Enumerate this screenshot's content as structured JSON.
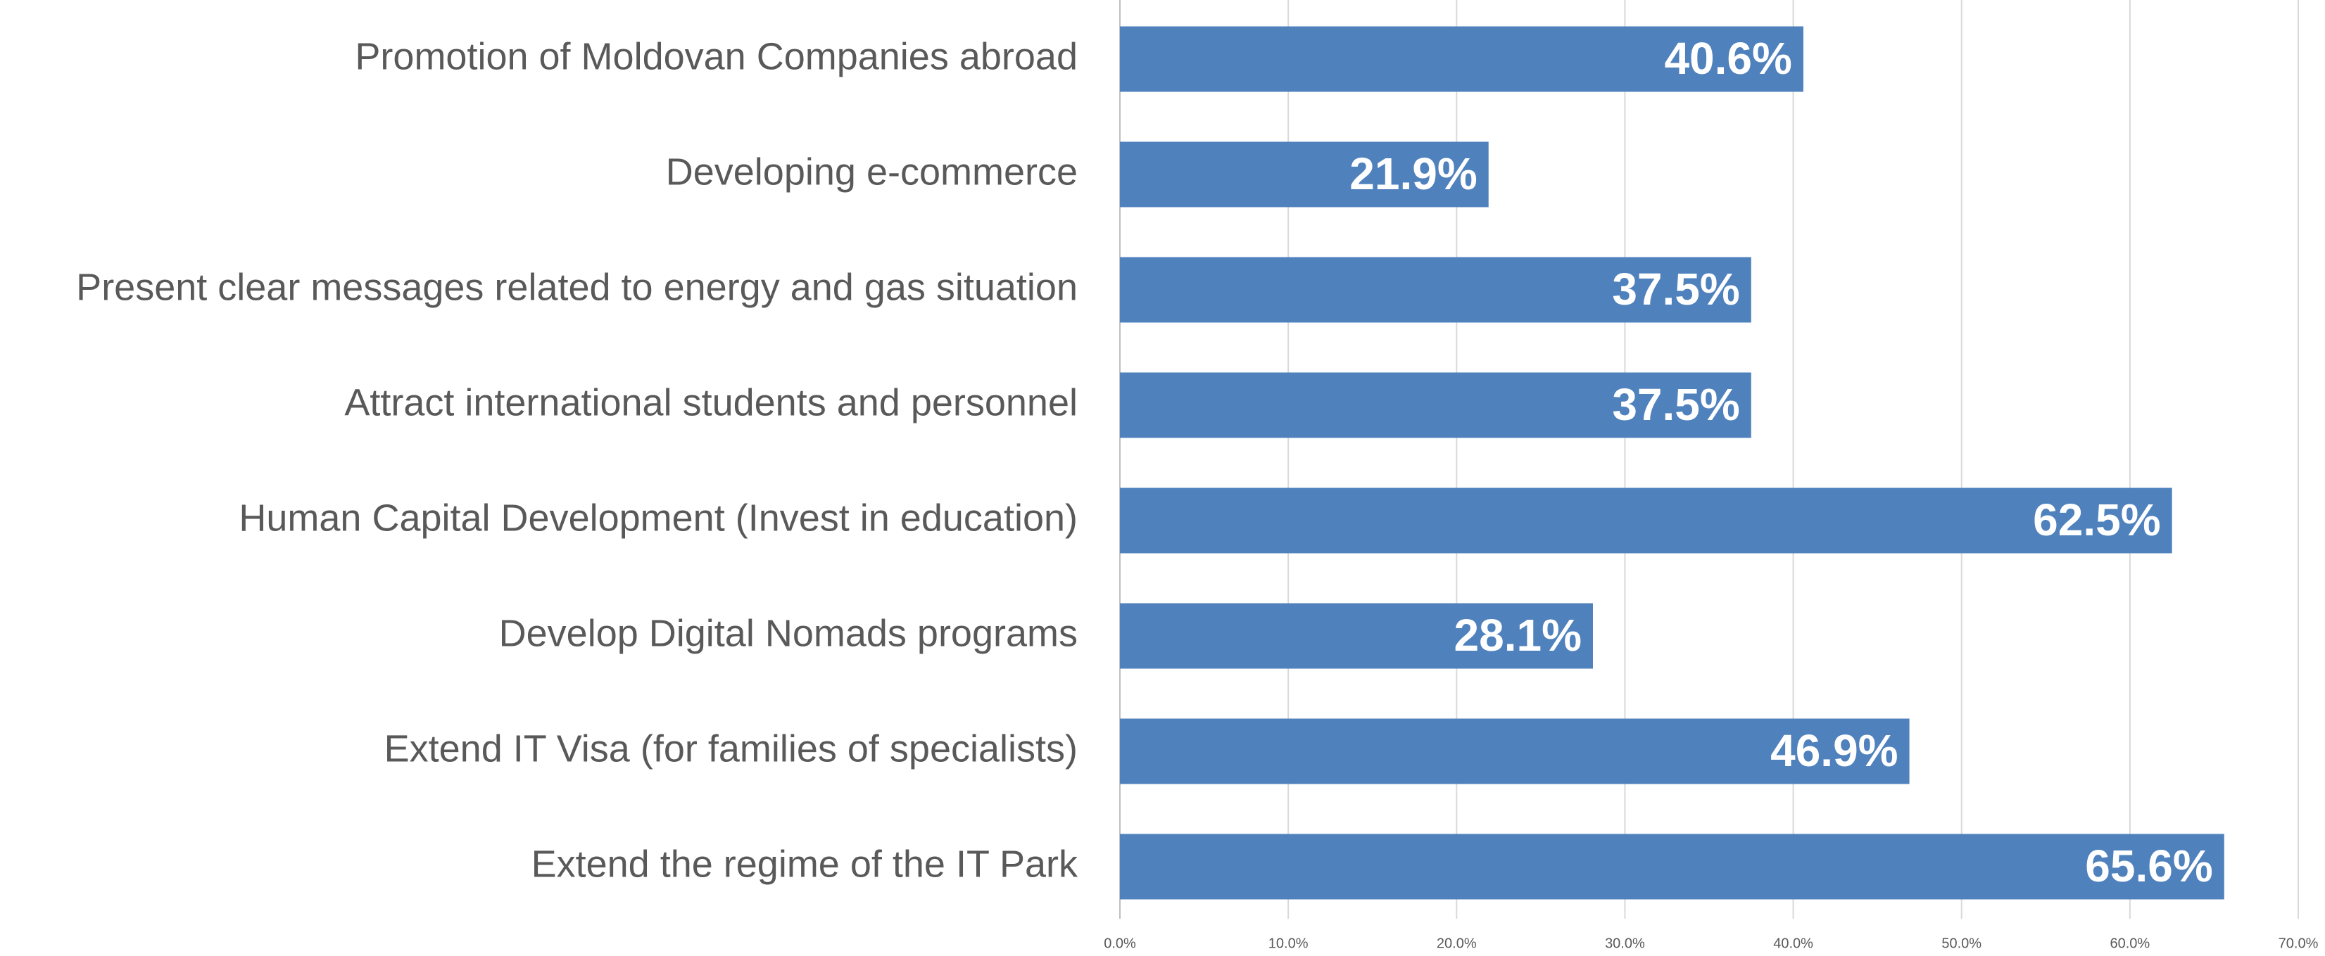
{
  "chart_data": {
    "type": "bar",
    "orientation": "horizontal",
    "categories": [
      "Promotion of Moldovan Companies abroad",
      "Developing e-commerce",
      "Present clear messages related to energy and gas situation",
      "Attract international students and personnel",
      "Human Capital Development (Invest in education)",
      "Develop Digital Nomads programs",
      "Extend IT Visa (for families of specialists)",
      "Extend the regime of the IT Park"
    ],
    "values": [
      40.6,
      21.9,
      37.5,
      37.5,
      62.5,
      28.1,
      46.9,
      65.6
    ],
    "value_labels": [
      "40.6%",
      "21.9%",
      "37.5%",
      "37.5%",
      "62.5%",
      "28.1%",
      "46.9%",
      "65.6%"
    ],
    "color": "#4f81bd",
    "xlim": [
      0,
      70
    ],
    "xticks": [
      {
        "value": 0,
        "label": "0.0%"
      },
      {
        "value": 10,
        "label": "10.0%"
      },
      {
        "value": 20,
        "label": "20.0%"
      },
      {
        "value": 30,
        "label": "30.0%"
      },
      {
        "value": 40,
        "label": "40.0%"
      },
      {
        "value": 50,
        "label": "50.0%"
      },
      {
        "value": 60,
        "label": "60.0%"
      },
      {
        "value": 70,
        "label": "70.0%"
      }
    ],
    "grid": true
  }
}
